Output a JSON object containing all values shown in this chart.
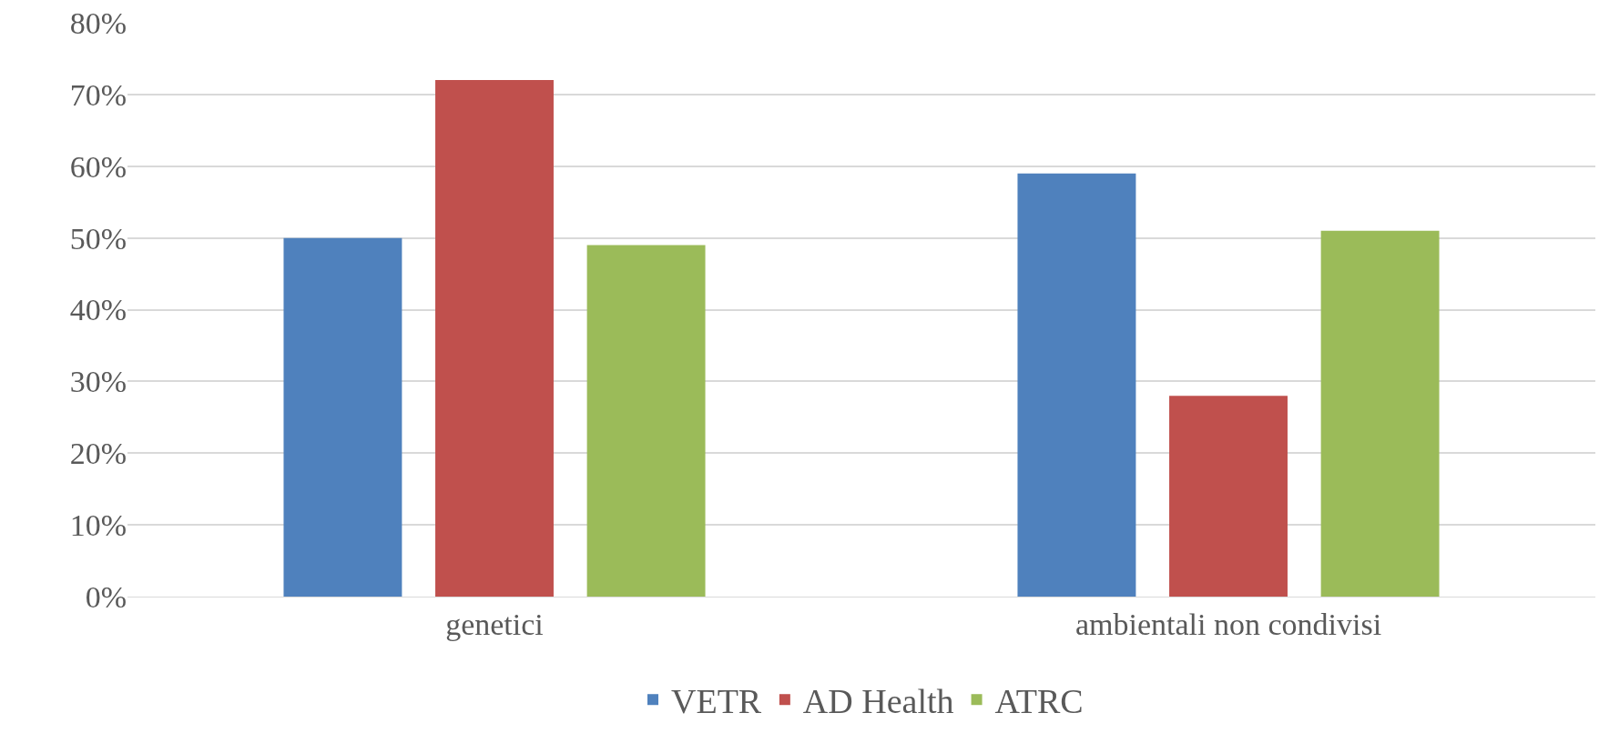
{
  "chart_data": {
    "type": "bar",
    "categories": [
      "genetici",
      "ambientali non condivisi"
    ],
    "series": [
      {
        "name": "VETR",
        "color": "#4f81bd",
        "values": [
          50,
          59
        ]
      },
      {
        "name": "AD Health",
        "color": "#c0504d",
        "values": [
          72,
          28
        ]
      },
      {
        "name": "ATRC",
        "color": "#9bbb59",
        "values": [
          49,
          51
        ]
      }
    ],
    "ylim": [
      0,
      80
    ],
    "yticks": [
      {
        "value": 0,
        "label": "0%"
      },
      {
        "value": 10,
        "label": "10%"
      },
      {
        "value": 20,
        "label": "20%"
      },
      {
        "value": 30,
        "label": "30%"
      },
      {
        "value": 40,
        "label": "40%"
      },
      {
        "value": 50,
        "label": "50%"
      },
      {
        "value": 60,
        "label": "60%"
      },
      {
        "value": 70,
        "label": "70%"
      },
      {
        "value": 80,
        "label": "80%"
      }
    ],
    "grid": "y",
    "legend": "bottom"
  }
}
